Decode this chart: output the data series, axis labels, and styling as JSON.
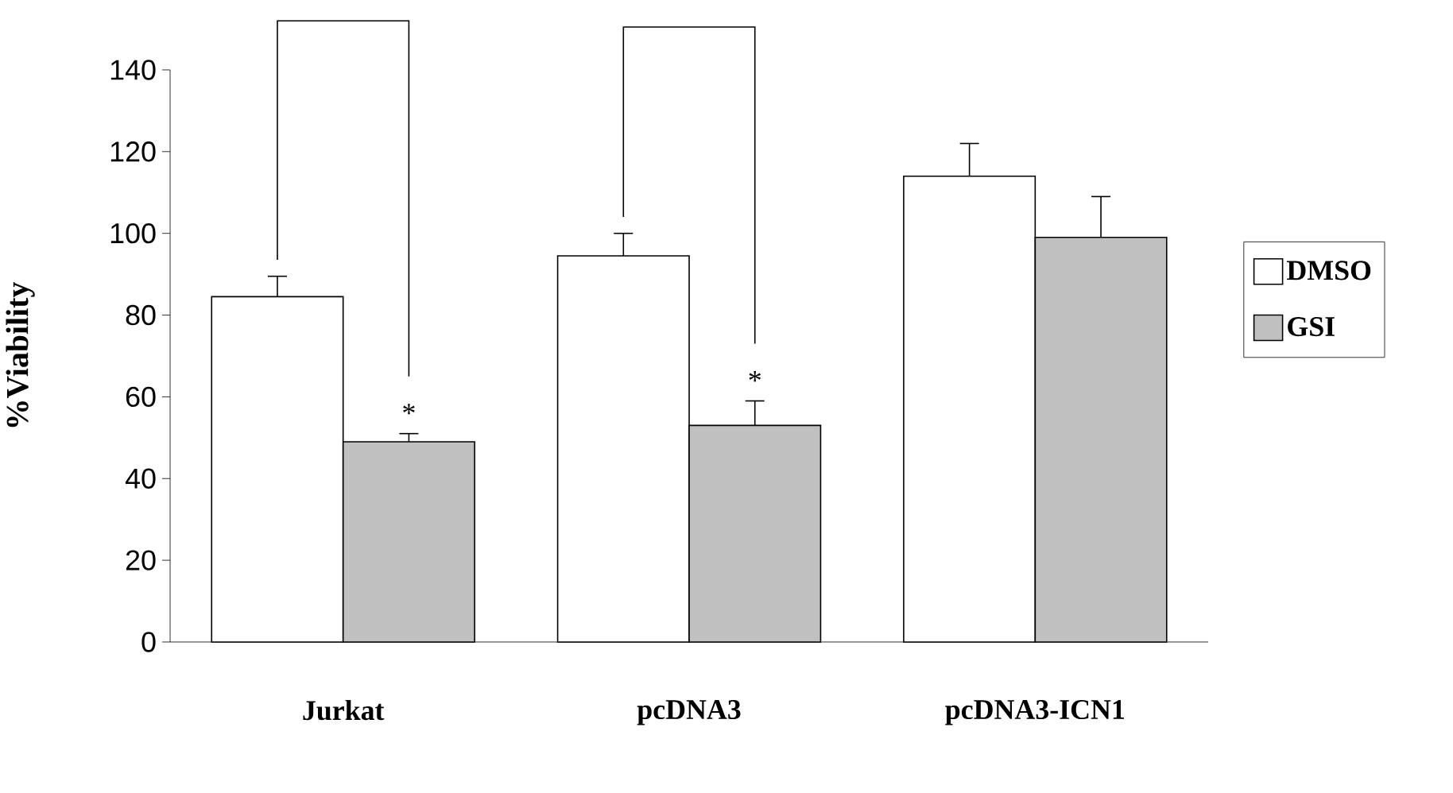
{
  "chart_data": {
    "type": "bar",
    "ylabel": "%Viability",
    "categories": [
      "Jurkat",
      "pcDNA3",
      "pcDNA3-ICN1"
    ],
    "series": [
      {
        "name": "DMSO",
        "color": "#ffffff",
        "values": [
          84.5,
          94.5,
          114
        ],
        "errors": [
          5,
          5.5,
          8
        ]
      },
      {
        "name": "GSI",
        "color": "#c0c0c0",
        "values": [
          49,
          53,
          99
        ],
        "errors": [
          2,
          6,
          10
        ]
      }
    ],
    "ylim": [
      0,
      140
    ],
    "yticks": [
      0,
      20,
      40,
      60,
      80,
      100,
      120,
      140
    ],
    "legend": "right",
    "grid": false,
    "annotations": [
      "*",
      "*"
    ]
  }
}
